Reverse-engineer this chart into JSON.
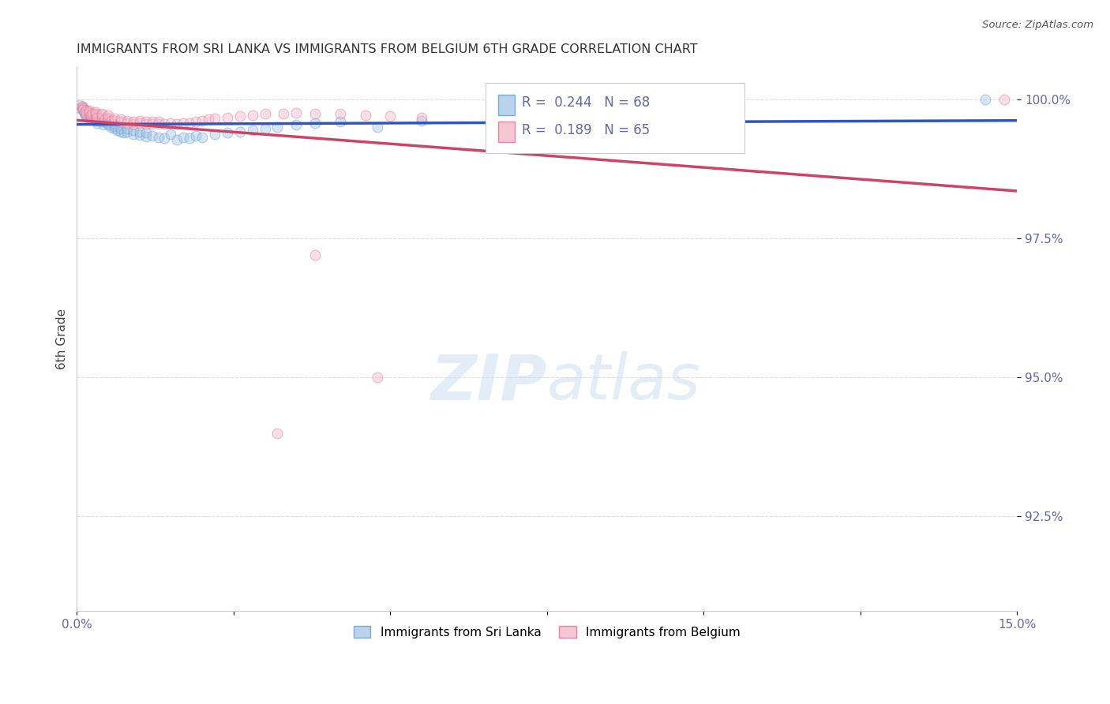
{
  "title": "IMMIGRANTS FROM SRI LANKA VS IMMIGRANTS FROM BELGIUM 6TH GRADE CORRELATION CHART",
  "source_text": "Source: ZipAtlas.com",
  "ylabel": "6th Grade",
  "xlim": [
    0.0,
    0.15
  ],
  "ylim": [
    0.908,
    1.006
  ],
  "xticks": [
    0.0,
    0.025,
    0.05,
    0.075,
    0.1,
    0.125,
    0.15
  ],
  "xticklabels": [
    "0.0%",
    "",
    "",
    "",
    "",
    "",
    "15.0%"
  ],
  "yticks": [
    0.925,
    0.95,
    0.975,
    1.0
  ],
  "yticklabels": [
    "92.5%",
    "95.0%",
    "97.5%",
    "100.0%"
  ],
  "sri_lanka_color": "#a8c8e8",
  "sri_lanka_edge": "#6699cc",
  "belgium_color": "#f5b8c8",
  "belgium_edge": "#e07090",
  "sri_lanka_line_color": "#3355bb",
  "belgium_line_color": "#cc4466",
  "legend_sri_lanka": "Immigrants from Sri Lanka",
  "legend_belgium": "Immigrants from Belgium",
  "R_sri_lanka": 0.244,
  "N_sri_lanka": 68,
  "R_belgium": 0.189,
  "N_belgium": 65,
  "sri_lanka_x": [
    0.0005,
    0.0008,
    0.001,
    0.001,
    0.0012,
    0.0012,
    0.0015,
    0.0015,
    0.0015,
    0.002,
    0.002,
    0.002,
    0.002,
    0.0022,
    0.0025,
    0.003,
    0.003,
    0.003,
    0.003,
    0.003,
    0.0032,
    0.0035,
    0.004,
    0.004,
    0.004,
    0.0042,
    0.0045,
    0.005,
    0.005,
    0.005,
    0.0055,
    0.006,
    0.006,
    0.006,
    0.0065,
    0.007,
    0.007,
    0.0075,
    0.008,
    0.008,
    0.009,
    0.009,
    0.01,
    0.01,
    0.011,
    0.011,
    0.012,
    0.013,
    0.014,
    0.015,
    0.016,
    0.017,
    0.018,
    0.019,
    0.02,
    0.022,
    0.024,
    0.026,
    0.028,
    0.03,
    0.032,
    0.035,
    0.038,
    0.042,
    0.048,
    0.055,
    0.07,
    0.145
  ],
  "sri_lanka_y": [
    0.9985,
    0.9988,
    0.9982,
    0.9985,
    0.9975,
    0.9978,
    0.997,
    0.9972,
    0.998,
    0.9968,
    0.9972,
    0.9975,
    0.9978,
    0.9965,
    0.997,
    0.9962,
    0.9965,
    0.9968,
    0.9972,
    0.9975,
    0.9958,
    0.9962,
    0.996,
    0.9963,
    0.9968,
    0.9955,
    0.996,
    0.9955,
    0.9958,
    0.9962,
    0.995,
    0.9948,
    0.9952,
    0.9956,
    0.9945,
    0.9942,
    0.9948,
    0.994,
    0.9942,
    0.9948,
    0.9938,
    0.9945,
    0.9936,
    0.9942,
    0.9934,
    0.994,
    0.9935,
    0.9932,
    0.993,
    0.9938,
    0.9928,
    0.9932,
    0.993,
    0.9935,
    0.9932,
    0.9938,
    0.994,
    0.9942,
    0.9945,
    0.9948,
    0.995,
    0.9955,
    0.9958,
    0.996,
    0.995,
    0.9962,
    0.9968,
    1.0
  ],
  "belgium_x": [
    0.0005,
    0.0008,
    0.001,
    0.001,
    0.0012,
    0.0015,
    0.0015,
    0.002,
    0.002,
    0.002,
    0.0022,
    0.0025,
    0.003,
    0.003,
    0.003,
    0.003,
    0.0032,
    0.004,
    0.004,
    0.004,
    0.0045,
    0.005,
    0.005,
    0.005,
    0.0055,
    0.006,
    0.006,
    0.007,
    0.007,
    0.008,
    0.008,
    0.009,
    0.009,
    0.01,
    0.01,
    0.011,
    0.011,
    0.012,
    0.012,
    0.013,
    0.013,
    0.014,
    0.015,
    0.016,
    0.017,
    0.018,
    0.019,
    0.02,
    0.021,
    0.022,
    0.024,
    0.026,
    0.028,
    0.03,
    0.033,
    0.035,
    0.038,
    0.042,
    0.046,
    0.05,
    0.055,
    0.032,
    0.038,
    0.048,
    0.148
  ],
  "belgium_y": [
    0.999,
    0.9988,
    0.9985,
    0.9982,
    0.9978,
    0.998,
    0.9975,
    0.9975,
    0.9978,
    0.998,
    0.9972,
    0.9975,
    0.997,
    0.9972,
    0.9975,
    0.9978,
    0.9968,
    0.9968,
    0.9972,
    0.9975,
    0.9965,
    0.9965,
    0.9968,
    0.9972,
    0.9962,
    0.9962,
    0.9966,
    0.996,
    0.9964,
    0.9958,
    0.9962,
    0.9956,
    0.996,
    0.9958,
    0.9962,
    0.9956,
    0.996,
    0.9956,
    0.996,
    0.9956,
    0.996,
    0.9956,
    0.9958,
    0.9956,
    0.9958,
    0.9958,
    0.996,
    0.9962,
    0.9964,
    0.9966,
    0.9968,
    0.997,
    0.9972,
    0.9974,
    0.9975,
    0.9976,
    0.9975,
    0.9975,
    0.9972,
    0.997,
    0.9968,
    0.94,
    0.972,
    0.95,
    1.0
  ],
  "background_color": "#ffffff",
  "grid_color": "#dddddd",
  "title_color": "#333333",
  "axis_color": "#6666aa",
  "marker_size": 85,
  "marker_alpha": 0.45,
  "line_width": 2.5
}
